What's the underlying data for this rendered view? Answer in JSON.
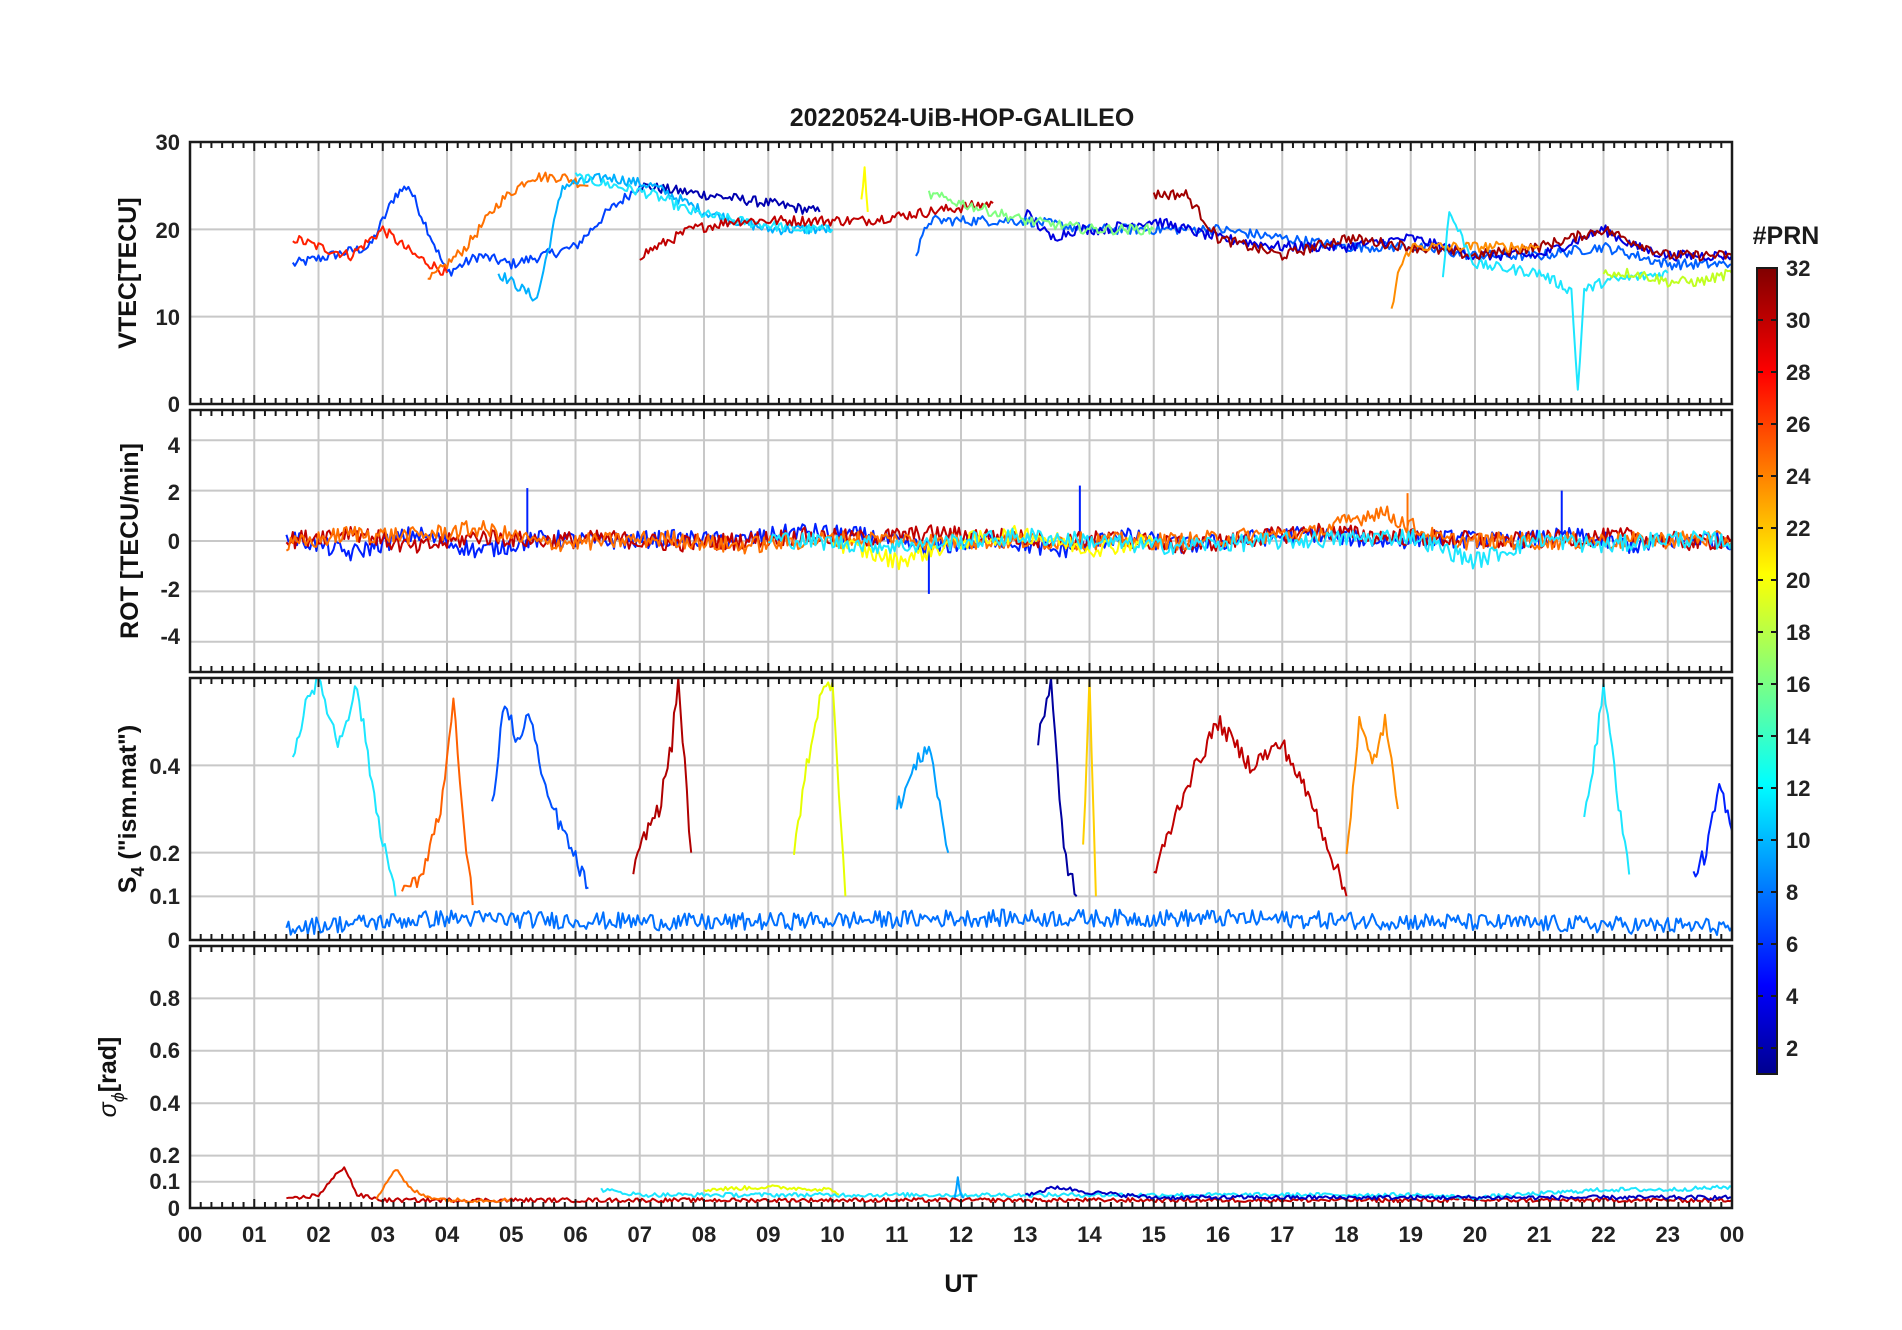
{
  "figure": {
    "title": "20220524-UiB-HOP-GALILEO",
    "xlabel": "UT",
    "x_ticks": [
      "00",
      "01",
      "02",
      "03",
      "04",
      "05",
      "06",
      "07",
      "08",
      "09",
      "10",
      "11",
      "12",
      "13",
      "14",
      "15",
      "16",
      "17",
      "18",
      "19",
      "20",
      "21",
      "22",
      "23",
      "00"
    ]
  },
  "colorbar": {
    "label": "#PRN",
    "ticks": [
      "2",
      "4",
      "6",
      "8",
      "10",
      "12",
      "14",
      "16",
      "18",
      "20",
      "22",
      "24",
      "26",
      "28",
      "30",
      "32"
    ],
    "range": [
      1,
      32
    ],
    "colormap": "jet"
  },
  "panels": {
    "vtec": {
      "ylabel": "VTEC[TECU]",
      "ticks": [
        "0",
        "10",
        "20",
        "30"
      ]
    },
    "rot": {
      "ylabel": "ROT [TECU/min]",
      "ticks": [
        "-4",
        "-2",
        "0",
        "2",
        "4"
      ]
    },
    "s4": {
      "ylabel": "S",
      "ylabel_sub": "4",
      "ylabel_rest": " (\"ism.mat\")",
      "ticks": [
        "0",
        "0.1",
        "0.2",
        "0.4"
      ]
    },
    "sigma": {
      "ylabel": "σ",
      "ylabel_sub": "ϕ",
      "ylabel_rest": "[rad]",
      "ticks": [
        "0",
        "0.1",
        "0.2",
        "0.4",
        "0.6",
        "0.8"
      ]
    }
  },
  "chart_data": [
    {
      "type": "line",
      "title": "20220524-UiB-HOP-GALILEO",
      "ylabel": "VTEC[TECU]",
      "xlabel": "UT",
      "xlim": [
        0,
        24
      ],
      "ylim": [
        0,
        30
      ],
      "grid": true,
      "series": [
        {
          "prn": 5,
          "color": "#0040ff",
          "x": [
            1.6,
            2.2,
            2.8,
            3.2,
            3.4,
            3.7,
            4.0,
            4.5,
            5.0,
            5.5,
            6.0,
            6.5,
            7.0
          ],
          "y": [
            16,
            17,
            18,
            24,
            25,
            20,
            15,
            17,
            16,
            17,
            18,
            22,
            25
          ]
        },
        {
          "prn": 2,
          "color": "#0000b0",
          "x": [
            7.0,
            8.0,
            9.0,
            9.8
          ],
          "y": [
            25,
            24,
            23,
            22
          ]
        },
        {
          "prn": 28,
          "color": "#ff2000",
          "x": [
            1.6,
            2.0,
            2.5,
            3.0,
            3.5,
            4.0
          ],
          "y": [
            19,
            18,
            17,
            20,
            17,
            15
          ]
        },
        {
          "prn": 24,
          "color": "#ff7000",
          "x": [
            3.7,
            4.3,
            4.8,
            5.3,
            5.8,
            6.2
          ],
          "y": [
            14,
            18,
            23,
            26,
            26,
            25
          ]
        },
        {
          "prn": 10,
          "color": "#00b0ff",
          "x": [
            4.8,
            5.2,
            5.4,
            5.8,
            6.5,
            7.2,
            8.0,
            9.0,
            10.0
          ],
          "y": [
            15,
            13,
            12,
            25,
            26,
            25,
            22,
            20,
            20
          ]
        },
        {
          "prn": 12,
          "color": "#1ce6ff",
          "x": [
            6.0,
            6.6,
            7.2,
            7.8,
            8.5,
            9.5,
            10.0
          ],
          "y": [
            26,
            25,
            24,
            22,
            21,
            20,
            20
          ]
        },
        {
          "prn": 30,
          "color": "#c00000",
          "x": [
            7.0,
            7.8,
            8.5,
            9.5,
            10.5,
            11.5,
            12.5
          ],
          "y": [
            17,
            20,
            21,
            21,
            21,
            22,
            23
          ]
        },
        {
          "prn": 20,
          "color": "#ffff00",
          "x": [
            10.45,
            10.5,
            10.55
          ],
          "y": [
            23,
            27.5,
            22
          ]
        },
        {
          "prn": 7,
          "color": "#0060ff",
          "x": [
            11.3,
            11.5,
            12.0,
            13.0,
            14.0,
            15.0,
            16.0,
            17.0,
            18.0,
            19.0,
            20.0,
            21.0,
            22.0,
            23.0,
            24.0
          ],
          "y": [
            17,
            21,
            21,
            21,
            20,
            20,
            20,
            19,
            18,
            18,
            17,
            17,
            18,
            16,
            16
          ]
        },
        {
          "prn": 3,
          "color": "#0000e0",
          "x": [
            13.0,
            13.4,
            13.8,
            14.2,
            15.0,
            16.0,
            17.0,
            18.0,
            19.0,
            20.0,
            21.0,
            22.0,
            22.5,
            23.0,
            24.0
          ],
          "y": [
            22,
            19,
            20,
            20,
            21,
            19,
            18,
            18,
            19,
            17,
            17,
            20,
            18,
            17,
            17
          ]
        },
        {
          "prn": 31,
          "color": "#a00000",
          "x": [
            15.0,
            15.5,
            16.0,
            17.0,
            18.0,
            19.0,
            20.0,
            21.0,
            22.0,
            23.0,
            24.0
          ],
          "y": [
            24,
            24,
            19,
            17,
            19,
            18,
            17,
            18,
            20,
            17,
            17
          ]
        },
        {
          "prn": 23,
          "color": "#ff8c00",
          "x": [
            18.7,
            18.8,
            19.0,
            20.0,
            21.0
          ],
          "y": [
            10.5,
            15,
            18,
            18,
            18
          ]
        },
        {
          "prn": 11,
          "color": "#1ce6ff",
          "x": [
            19.5,
            19.6,
            20.0,
            21.0,
            21.5,
            21.6,
            21.7,
            22.0,
            23.0
          ],
          "y": [
            15,
            22,
            16,
            15,
            13,
            1.5,
            13,
            14,
            15
          ]
        },
        {
          "prn": 17,
          "color": "#c0ff20",
          "x": [
            22.0,
            22.5,
            23.0,
            23.5,
            24.0
          ],
          "y": [
            15,
            15,
            14,
            14,
            15
          ]
        },
        {
          "prn": 16,
          "color": "#80ff80",
          "x": [
            11.5,
            12.0,
            12.5,
            13.0,
            14.0,
            15.0
          ],
          "y": [
            24,
            23,
            22,
            21,
            20,
            20
          ]
        }
      ]
    },
    {
      "type": "line",
      "ylabel": "ROT [TECU/min]",
      "xlabel": "UT",
      "xlim": [
        0,
        24
      ],
      "ylim": [
        -5.2,
        5.2
      ],
      "grid": true,
      "series": [
        {
          "prn": 4,
          "color": "#0020ff",
          "x": [
            1.5,
            2.5,
            3.5,
            4.5,
            5.5,
            6.5,
            7.5,
            8.5,
            9.5,
            10.5,
            11.5,
            12.5,
            13.5,
            14.5,
            15.5,
            16.5,
            17.5,
            18.5,
            19.5,
            20.5,
            21.5,
            22.5,
            23.5,
            24.0
          ],
          "y": [
            0.2,
            -0.5,
            0.3,
            -0.4,
            0.1,
            0.0,
            0.1,
            0.0,
            0.4,
            0.2,
            -0.3,
            0.1,
            -0.4,
            0.2,
            -0.2,
            0.1,
            0.3,
            0.0,
            0.1,
            0.0,
            0.2,
            -0.2,
            0.1,
            0.0
          ],
          "spikes": [
            [
              5.25,
              2.1
            ],
            [
              13.85,
              2.2
            ],
            [
              21.35,
              2.0
            ],
            [
              11.5,
              -2.1
            ]
          ]
        },
        {
          "prn": 29,
          "color": "#c00000",
          "x": [
            1.5,
            2.5,
            3.5,
            4.5,
            5.5,
            6.5,
            7.5,
            8.5,
            9.5,
            10.5,
            11.5,
            12.5,
            13.5,
            14.5,
            15.5,
            16.5,
            17.5,
            18.5,
            19.5,
            20.5,
            21.5,
            22.5,
            23.5,
            24.0
          ],
          "y": [
            0.0,
            0.4,
            -0.3,
            0.2,
            0.0,
            0.1,
            -0.1,
            0.0,
            0.2,
            0.1,
            0.3,
            0.2,
            0.0,
            0.1,
            -0.2,
            0.1,
            0.4,
            0.2,
            0.1,
            0.0,
            0.1,
            0.2,
            -0.1,
            0.1
          ]
        },
        {
          "prn": 24,
          "color": "#ff7000",
          "x": [
            1.5,
            2.5,
            3.5,
            4.5,
            5.5,
            6.5,
            7.5,
            8.5,
            9.5,
            10.5,
            11.5,
            12.5,
            13.5,
            14.5,
            15.5,
            16.5,
            17.5,
            18.5,
            19.5,
            20.5,
            21.5,
            22.5,
            23.5,
            24.0
          ],
          "y": [
            -0.2,
            0.3,
            0.2,
            0.5,
            -0.1,
            0.0,
            0.1,
            -0.2,
            0.0,
            0.1,
            0.0,
            0.0,
            0.0,
            0.0,
            0.0,
            0.2,
            0.3,
            1.2,
            0.0,
            0.0,
            0.0,
            0.0,
            0.1,
            0.0
          ],
          "spikes": [
            [
              18.95,
              1.9
            ]
          ]
        },
        {
          "prn": 20,
          "color": "#ffff00",
          "x": [
            10.0,
            11.0,
            12.0,
            13.0,
            14.0,
            15.0
          ],
          "y": [
            0.0,
            -0.8,
            0.0,
            0.3,
            -0.3,
            0.0
          ]
        },
        {
          "prn": 11,
          "color": "#1ce6ff",
          "x": [
            9.0,
            11.0,
            13.0,
            15.0,
            17.0,
            19.0,
            20.0,
            21.0,
            22.0,
            23.0,
            24.0
          ],
          "y": [
            0.1,
            -0.2,
            0.2,
            -0.2,
            0.0,
            0.2,
            -0.8,
            0.1,
            -0.2,
            0.1,
            0.0
          ]
        }
      ]
    },
    {
      "type": "line",
      "ylabel": "S4 (\"ism.mat\")",
      "xlabel": "UT",
      "xlim": [
        0,
        24
      ],
      "ylim": [
        0,
        0.6
      ],
      "grid": true,
      "series": [
        {
          "prn": 11,
          "color": "#1ce6ff",
          "x": [
            1.6,
            1.8,
            2.0,
            2.3,
            2.6,
            2.9,
            3.2
          ],
          "y": [
            0.4,
            0.55,
            0.6,
            0.45,
            0.58,
            0.3,
            0.1
          ]
        },
        {
          "prn": 5,
          "color": "#0050ff",
          "x": [
            4.7,
            4.9,
            5.1,
            5.3,
            5.5,
            5.8,
            6.2
          ],
          "y": [
            0.3,
            0.55,
            0.45,
            0.52,
            0.35,
            0.25,
            0.12
          ]
        },
        {
          "prn": 31,
          "color": "#b00000",
          "x": [
            6.9,
            7.1,
            7.3,
            7.5,
            7.6,
            7.8
          ],
          "y": [
            0.15,
            0.25,
            0.3,
            0.45,
            0.6,
            0.2
          ]
        },
        {
          "prn": 25,
          "color": "#ff6000",
          "x": [
            3.3,
            3.6,
            3.9,
            4.1,
            4.2,
            4.4
          ],
          "y": [
            0.1,
            0.15,
            0.3,
            0.55,
            0.35,
            0.08
          ]
        },
        {
          "prn": 20,
          "color": "#e6ff00",
          "x": [
            9.4,
            9.6,
            9.8,
            10.0,
            10.2
          ],
          "y": [
            0.2,
            0.4,
            0.55,
            0.6,
            0.1
          ]
        },
        {
          "prn": 9,
          "color": "#00a0ff",
          "x": [
            11.0,
            11.3,
            11.5,
            11.8
          ],
          "y": [
            0.3,
            0.4,
            0.45,
            0.2
          ]
        },
        {
          "prn": 1,
          "color": "#0000a0",
          "x": [
            13.2,
            13.4,
            13.6,
            13.8
          ],
          "y": [
            0.45,
            0.6,
            0.2,
            0.1
          ]
        },
        {
          "prn": 21,
          "color": "#ffd000",
          "x": [
            13.9,
            14.0,
            14.1
          ],
          "y": [
            0.2,
            0.6,
            0.1
          ]
        },
        {
          "prn": 30,
          "color": "#c00000",
          "x": [
            15.0,
            15.5,
            16.0,
            16.5,
            17.0,
            17.5,
            18.0
          ],
          "y": [
            0.15,
            0.35,
            0.5,
            0.4,
            0.45,
            0.3,
            0.1
          ]
        },
        {
          "prn": 23,
          "color": "#ff8c00",
          "x": [
            18.0,
            18.2,
            18.4,
            18.6,
            18.8
          ],
          "y": [
            0.2,
            0.5,
            0.4,
            0.5,
            0.3
          ]
        },
        {
          "prn": 12,
          "color": "#1ce6ff",
          "x": [
            21.7,
            21.9,
            22.0,
            22.2,
            22.4
          ],
          "y": [
            0.3,
            0.45,
            0.6,
            0.35,
            0.15
          ]
        },
        {
          "prn": 4,
          "color": "#0020ff",
          "x": [
            23.4,
            23.6,
            23.8,
            24.0
          ],
          "y": [
            0.15,
            0.2,
            0.35,
            0.25
          ]
        },
        {
          "prn": 8,
          "color": "#0070ff",
          "x": [
            1.5,
            4.0,
            8.0,
            12.0,
            16.0,
            20.0,
            24.0
          ],
          "y": [
            0.03,
            0.05,
            0.04,
            0.05,
            0.05,
            0.04,
            0.03
          ]
        }
      ]
    },
    {
      "type": "line",
      "ylabel": "σϕ[rad]",
      "xlabel": "UT",
      "xlim": [
        0,
        24
      ],
      "ylim": [
        0,
        1
      ],
      "grid": true,
      "series": [
        {
          "prn": 29,
          "color": "#c00000",
          "x": [
            1.5,
            2.0,
            2.4,
            2.6,
            3.0,
            4.0,
            6.0,
            9.0,
            12.0,
            15.0,
            18.0,
            21.0,
            24.0
          ],
          "y": [
            0.03,
            0.05,
            0.16,
            0.05,
            0.03,
            0.03,
            0.03,
            0.03,
            0.03,
            0.03,
            0.03,
            0.03,
            0.03
          ]
        },
        {
          "prn": 24,
          "color": "#ff7000",
          "x": [
            2.9,
            3.2,
            3.4,
            3.6,
            4.0,
            5.0
          ],
          "y": [
            0.04,
            0.15,
            0.08,
            0.05,
            0.03,
            0.03
          ]
        },
        {
          "prn": 20,
          "color": "#e6ff00",
          "x": [
            8.0,
            9.0,
            10.0,
            10.1
          ],
          "y": [
            0.07,
            0.08,
            0.07,
            0.05
          ]
        },
        {
          "prn": 11,
          "color": "#1ce6ff",
          "x": [
            6.4,
            7.0,
            8.0,
            19.0,
            20.0,
            22.0,
            23.0,
            24.0
          ],
          "y": [
            0.07,
            0.05,
            0.05,
            0.05,
            0.04,
            0.07,
            0.07,
            0.08
          ]
        },
        {
          "prn": 9,
          "color": "#00a0ff",
          "x": [
            11.9,
            11.95,
            12.0,
            12.05
          ],
          "y": [
            0.04,
            0.11,
            0.05,
            0.04
          ]
        },
        {
          "prn": 2,
          "color": "#0000c0",
          "x": [
            13.0,
            13.5,
            14.0,
            15.0,
            18.0,
            21.0,
            24.0
          ],
          "y": [
            0.05,
            0.08,
            0.06,
            0.04,
            0.04,
            0.04,
            0.04
          ]
        }
      ]
    }
  ]
}
